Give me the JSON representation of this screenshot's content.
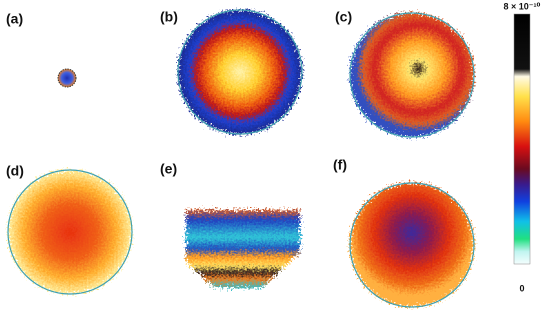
{
  "panels": [
    {
      "label": "(a)"
    },
    {
      "label": "(b)"
    },
    {
      "label": "(c)"
    },
    {
      "label": "(d)"
    },
    {
      "label": "(e)"
    },
    {
      "label": "(f)"
    }
  ],
  "colorbar": {
    "max_label": "8 × 10⁻¹⁰",
    "min_label": "0"
  }
}
